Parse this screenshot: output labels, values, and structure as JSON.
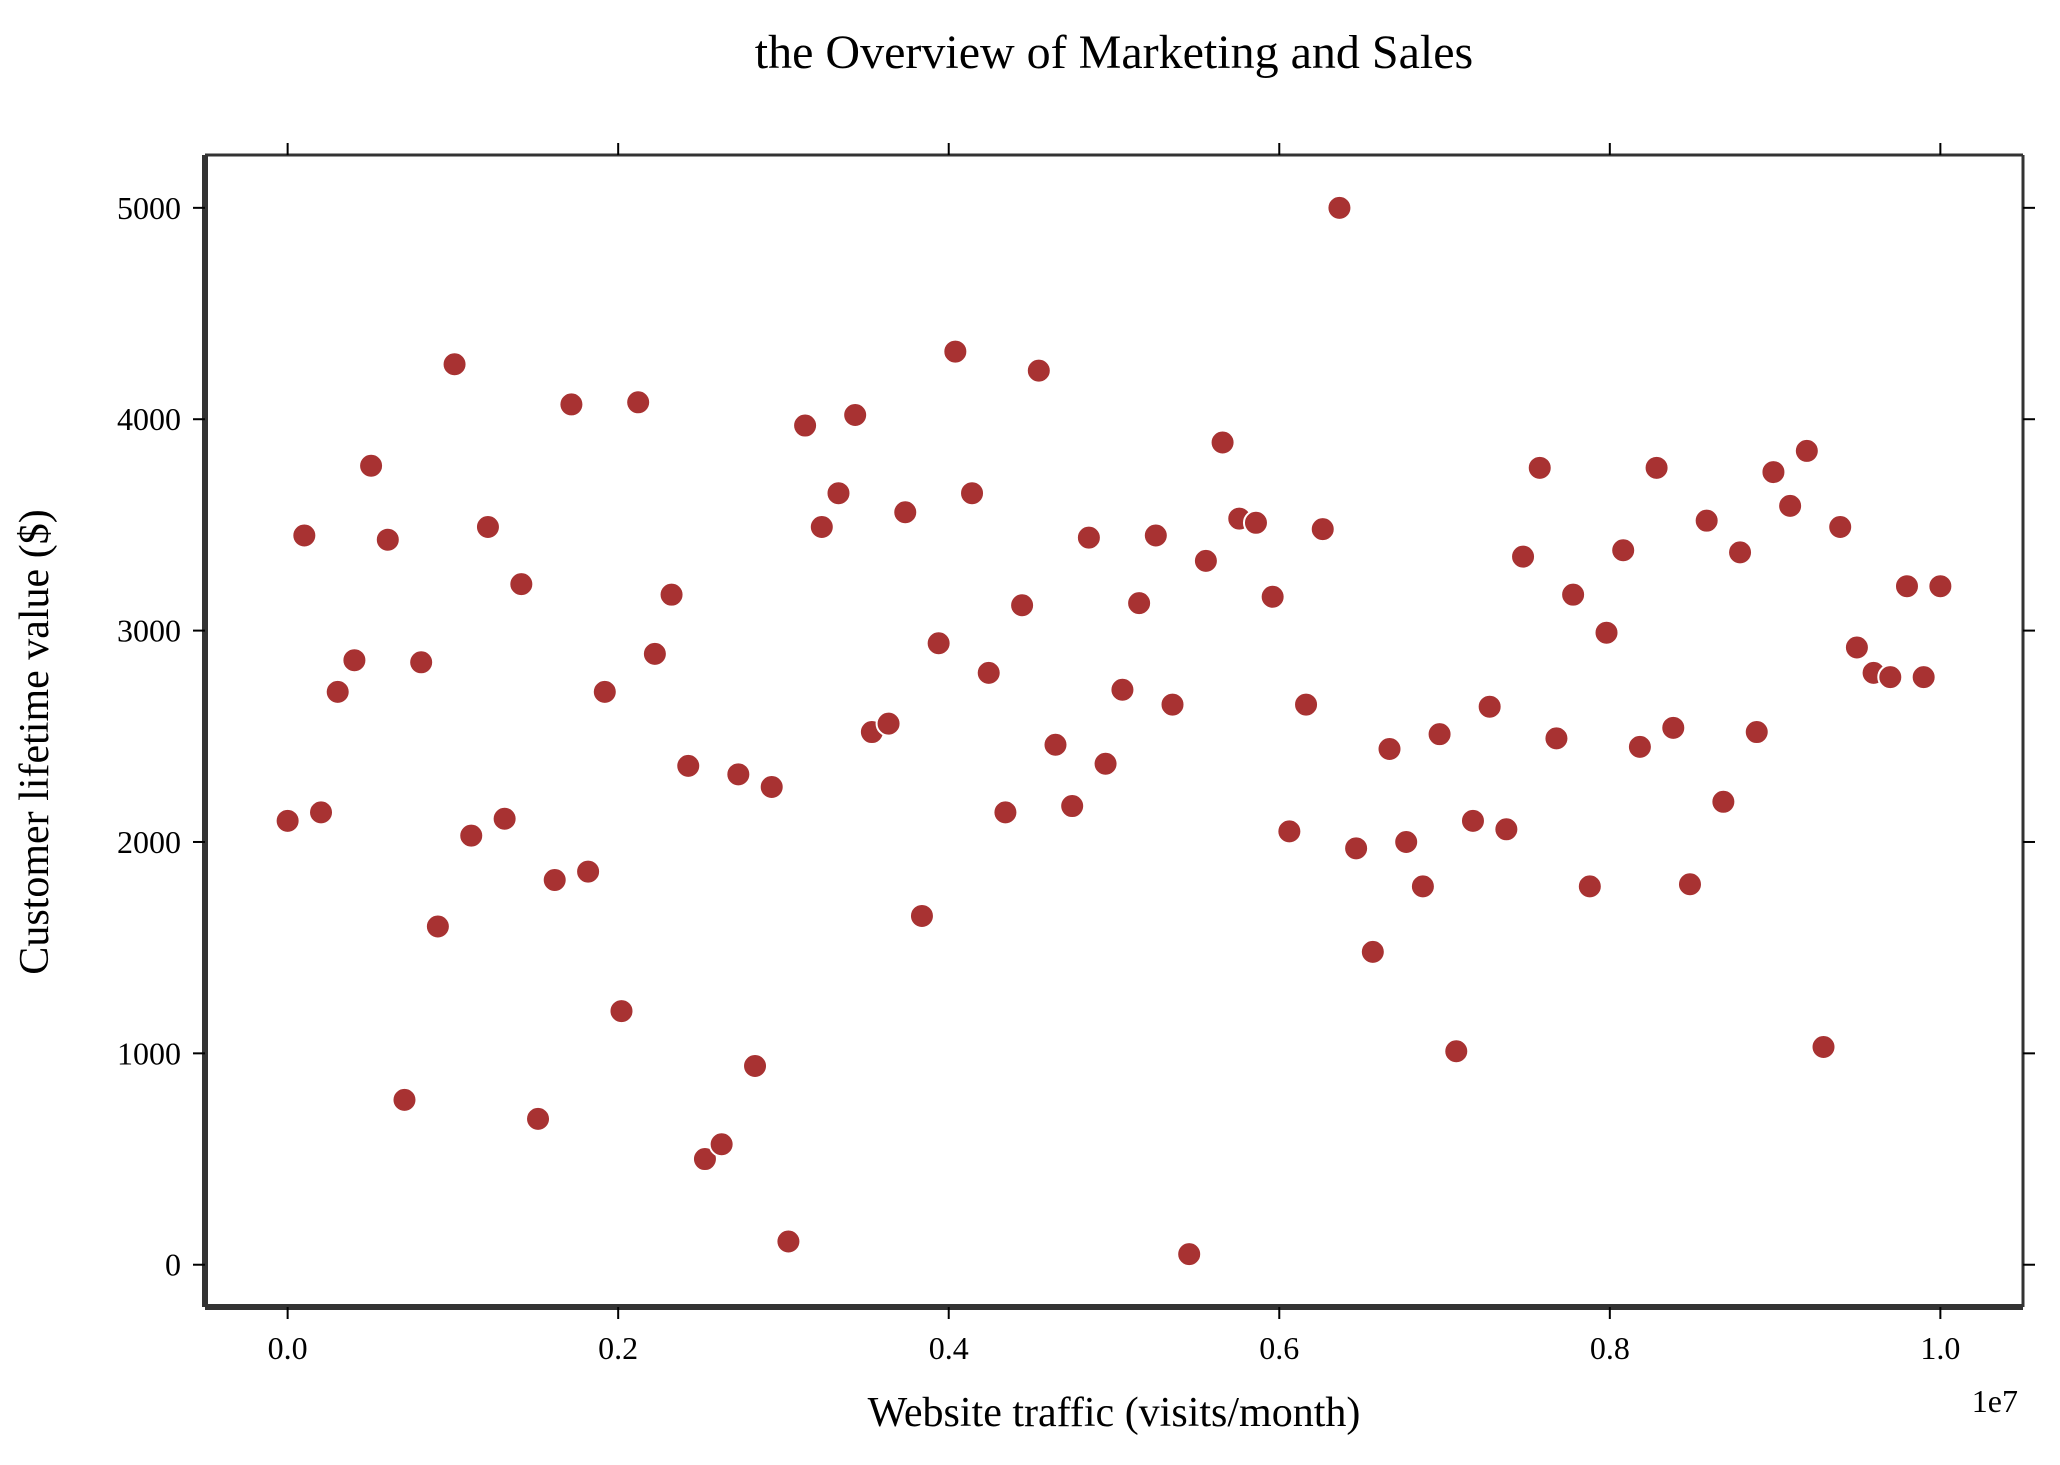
{
  "chart_data": {
    "type": "scatter",
    "title": "the Overview of Marketing and Sales",
    "xlabel": "Website traffic (visits/month)",
    "ylabel": "Customer lifetime value ($)",
    "x_offset_label": "1e7",
    "xlim": [
      -0.05,
      1.05
    ],
    "ylim": [
      -200,
      5250
    ],
    "x_ticks": [
      0.0,
      0.2,
      0.4,
      0.6,
      0.8,
      1.0
    ],
    "x_tick_labels": [
      "0.0",
      "0.2",
      "0.4",
      "0.6",
      "0.8",
      "1.0"
    ],
    "y_ticks": [
      0,
      1000,
      2000,
      3000,
      4000,
      5000
    ],
    "y_tick_labels": [
      "0",
      "1000",
      "2000",
      "3000",
      "4000",
      "5000"
    ],
    "grid": false,
    "legend": false,
    "colors": {
      "marker": "#a83232",
      "marker_edge": "#ffffff",
      "axis": "#333333"
    },
    "x": [
      0.0,
      0.0101,
      0.0202,
      0.0303,
      0.0404,
      0.0505,
      0.0606,
      0.0707,
      0.0808,
      0.0909,
      0.101,
      0.1111,
      0.1212,
      0.1313,
      0.1414,
      0.1515,
      0.1616,
      0.1717,
      0.1818,
      0.1919,
      0.202,
      0.2121,
      0.2222,
      0.2323,
      0.2424,
      0.2525,
      0.2626,
      0.2727,
      0.2828,
      0.2929,
      0.303,
      0.3131,
      0.3232,
      0.3333,
      0.3434,
      0.3535,
      0.3636,
      0.3737,
      0.3838,
      0.3939,
      0.404,
      0.4141,
      0.4242,
      0.4343,
      0.4444,
      0.4545,
      0.4646,
      0.4747,
      0.4848,
      0.4949,
      0.5051,
      0.5152,
      0.5253,
      0.5354,
      0.5455,
      0.5556,
      0.5657,
      0.5758,
      0.5859,
      0.596,
      0.6061,
      0.6162,
      0.6263,
      0.6364,
      0.6465,
      0.6566,
      0.6667,
      0.6768,
      0.6869,
      0.697,
      0.7071,
      0.7172,
      0.7273,
      0.7374,
      0.7475,
      0.7576,
      0.7677,
      0.7778,
      0.7879,
      0.798,
      0.8081,
      0.8182,
      0.8283,
      0.8384,
      0.8485,
      0.8586,
      0.8687,
      0.8788,
      0.8889,
      0.899,
      0.9091,
      0.9192,
      0.9293,
      0.9394,
      0.9495,
      0.9596,
      0.9697,
      0.9798,
      0.9899,
      1.0
    ],
    "y": [
      2100,
      3450,
      2140,
      2710,
      2860,
      3780,
      3430,
      780,
      2850,
      1600,
      4260,
      2030,
      3490,
      2110,
      3220,
      690,
      1820,
      4070,
      1860,
      2710,
      1200,
      4080,
      2890,
      3170,
      2360,
      500,
      570,
      2320,
      940,
      2260,
      110,
      3970,
      3490,
      3650,
      4020,
      2520,
      2560,
      3560,
      1650,
      2940,
      4320,
      3650,
      2800,
      2140,
      3120,
      4230,
      2460,
      2170,
      3440,
      2370,
      2720,
      3130,
      3450,
      2650,
      50,
      3330,
      3890,
      3530,
      3510,
      3160,
      2050,
      2650,
      3480,
      5000,
      1970,
      1480,
      2440,
      2000,
      1790,
      2510,
      1010,
      2100,
      2640,
      2060,
      3350,
      3770,
      2490,
      3170,
      1790,
      2990,
      3380,
      2450,
      3770,
      2540,
      1800,
      3520,
      2190,
      3370,
      2520,
      3750,
      3590,
      3850,
      1030,
      3490,
      2920,
      2800,
      2780,
      3210,
      2780,
      3210
    ]
  }
}
